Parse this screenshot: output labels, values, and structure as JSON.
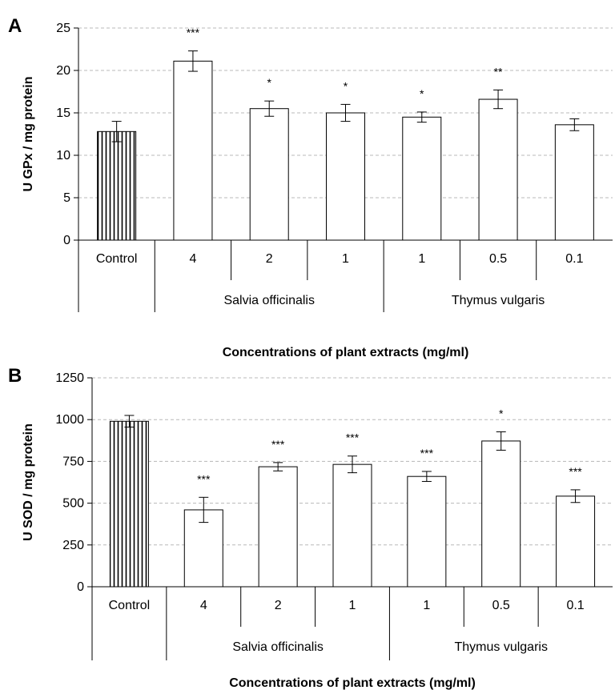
{
  "chart_data": [
    {
      "panel": "A",
      "type": "bar",
      "ylabel": "U GPx / mg protein",
      "xlabel": "Concentrations of plant extracts (mg/ml)",
      "ylim": [
        0,
        25
      ],
      "yticks": [
        0,
        5,
        10,
        15,
        20,
        25
      ],
      "grid": "horizontal-dashed",
      "categories": [
        "Control",
        "4",
        "2",
        "1",
        "1",
        "0.5",
        "0.1"
      ],
      "groups": [
        {
          "label": "Salvia officinalis",
          "categories": [
            "4",
            "2",
            "1"
          ]
        },
        {
          "label": "Thymus vulgaris",
          "categories": [
            "1",
            "0.5",
            "0.1"
          ]
        }
      ],
      "values": [
        12.8,
        21.1,
        15.5,
        15.0,
        14.5,
        16.6,
        13.6
      ],
      "errors": [
        1.2,
        1.2,
        0.9,
        1.0,
        0.6,
        1.1,
        0.7
      ],
      "significance": [
        "",
        "***",
        "*",
        "*",
        "*",
        "**",
        ""
      ],
      "bar_patterns": [
        "vertical-stripes",
        "empty",
        "empty",
        "empty",
        "empty",
        "empty",
        "empty"
      ]
    },
    {
      "panel": "B",
      "type": "bar",
      "ylabel": "U SOD / mg protein",
      "xlabel": "Concentrations of plant extracts (mg/ml)",
      "ylim": [
        0,
        1250
      ],
      "yticks": [
        0,
        250,
        500,
        750,
        1000,
        1250
      ],
      "grid": "horizontal-dashed",
      "categories": [
        "Control",
        "4",
        "2",
        "1",
        "1",
        "0.5",
        "0.1"
      ],
      "groups": [
        {
          "label": "Salvia officinalis",
          "categories": [
            "4",
            "2",
            "1"
          ]
        },
        {
          "label": "Thymus vulgaris",
          "categories": [
            "1",
            "0.5",
            "0.1"
          ]
        }
      ],
      "values": [
        990,
        460,
        718,
        732,
        660,
        872,
        542
      ],
      "errors": [
        35,
        75,
        25,
        50,
        30,
        55,
        38
      ],
      "significance": [
        "",
        "***",
        "***",
        "***",
        "***",
        "*",
        "***"
      ],
      "bar_patterns": [
        "vertical-stripes",
        "empty",
        "empty",
        "empty",
        "empty",
        "empty",
        "empty"
      ]
    }
  ]
}
